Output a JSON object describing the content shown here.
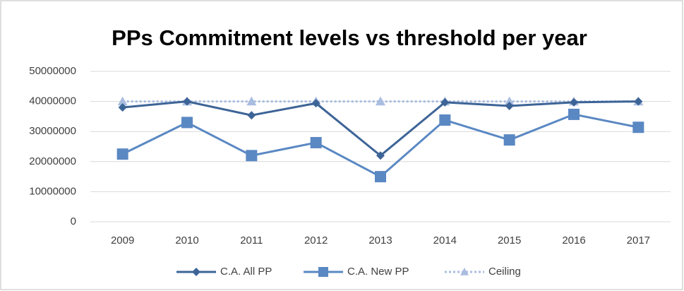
{
  "chart_data": {
    "type": "line",
    "title": "PPs Commitment levels vs threshold per year",
    "categories": [
      "2009",
      "2010",
      "2011",
      "2012",
      "2013",
      "2014",
      "2015",
      "2016",
      "2017"
    ],
    "series": [
      {
        "name": "C.A. All PP",
        "color": "#3d6497",
        "marker": "diamond",
        "dash": false,
        "values": [
          38000000,
          40000000,
          35400000,
          39400000,
          22000000,
          39700000,
          38500000,
          39700000,
          40000000
        ]
      },
      {
        "name": "C.A. New PP",
        "color": "#5a88c3",
        "marker": "square",
        "dash": false,
        "values": [
          22500000,
          33000000,
          22000000,
          26300000,
          15000000,
          33800000,
          27200000,
          35700000,
          31400000
        ]
      },
      {
        "name": "Ceiling",
        "color": "#a9bde0",
        "marker": "triangle",
        "dash": true,
        "values": [
          40000000,
          40000000,
          40000000,
          40000000,
          40000000,
          40000000,
          40000000,
          40000000,
          40000000
        ]
      }
    ],
    "ylim": [
      0,
      50000000
    ],
    "yticks": [
      0,
      10000000,
      20000000,
      30000000,
      40000000,
      50000000
    ],
    "grid": true,
    "legend": "bottom"
  }
}
